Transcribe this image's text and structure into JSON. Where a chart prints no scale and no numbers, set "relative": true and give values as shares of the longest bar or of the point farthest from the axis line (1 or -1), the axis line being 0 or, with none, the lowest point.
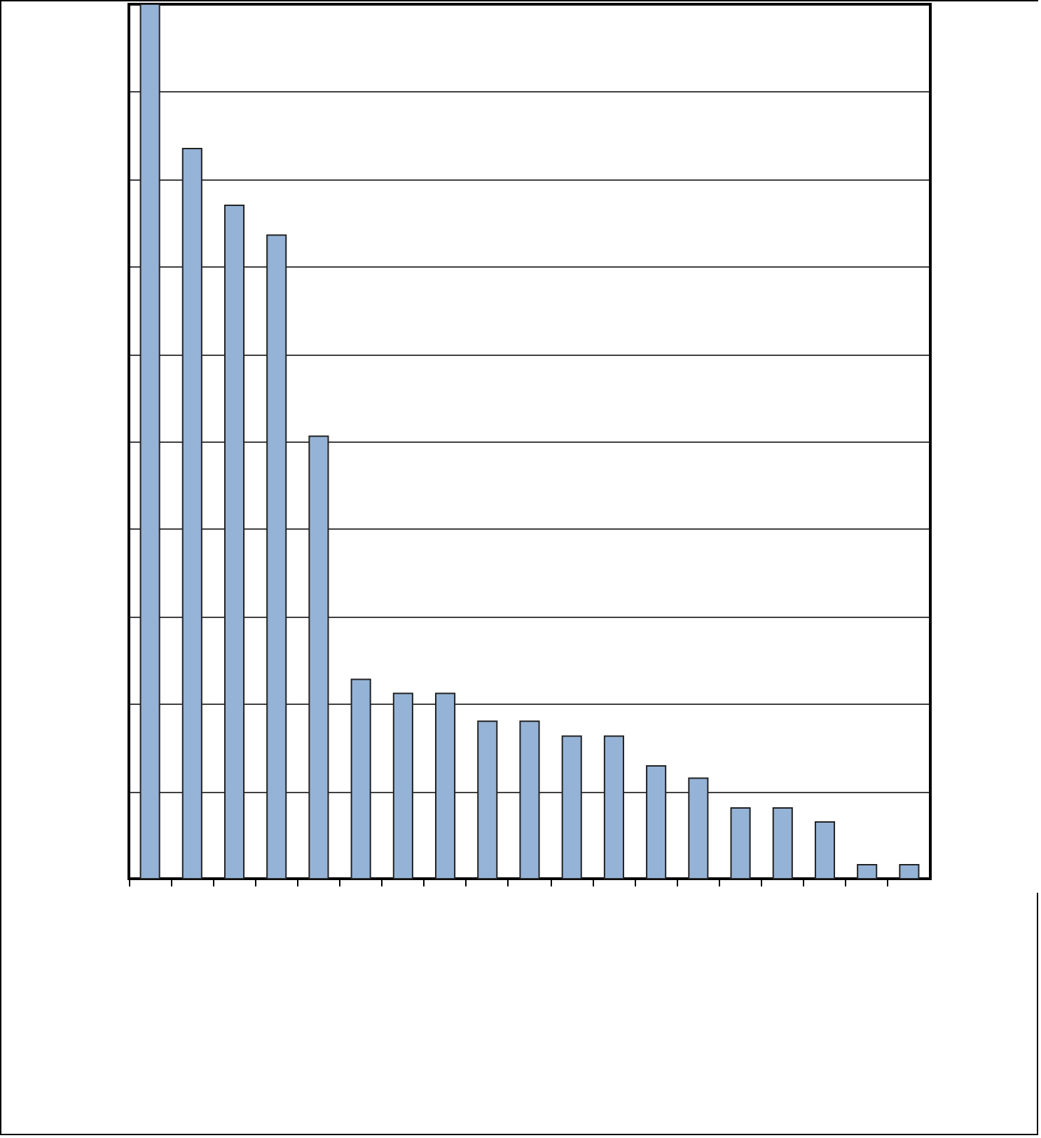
{
  "chart_data": {
    "type": "bar",
    "relative": true,
    "grid": "y",
    "categories": [
      null,
      null,
      null,
      null,
      null,
      null,
      null,
      null,
      null,
      null,
      null,
      null,
      null,
      null,
      null,
      null,
      null,
      null,
      null
    ],
    "values": [
      1,
      0.835,
      0.77,
      0.736,
      0.506,
      0.228,
      0.212,
      0.212,
      0.18,
      0.18,
      0.163,
      0.163,
      0.129,
      0.115,
      0.081,
      0.081,
      0.065,
      0.016,
      0.016
    ],
    "color": "#95b3d7"
  }
}
